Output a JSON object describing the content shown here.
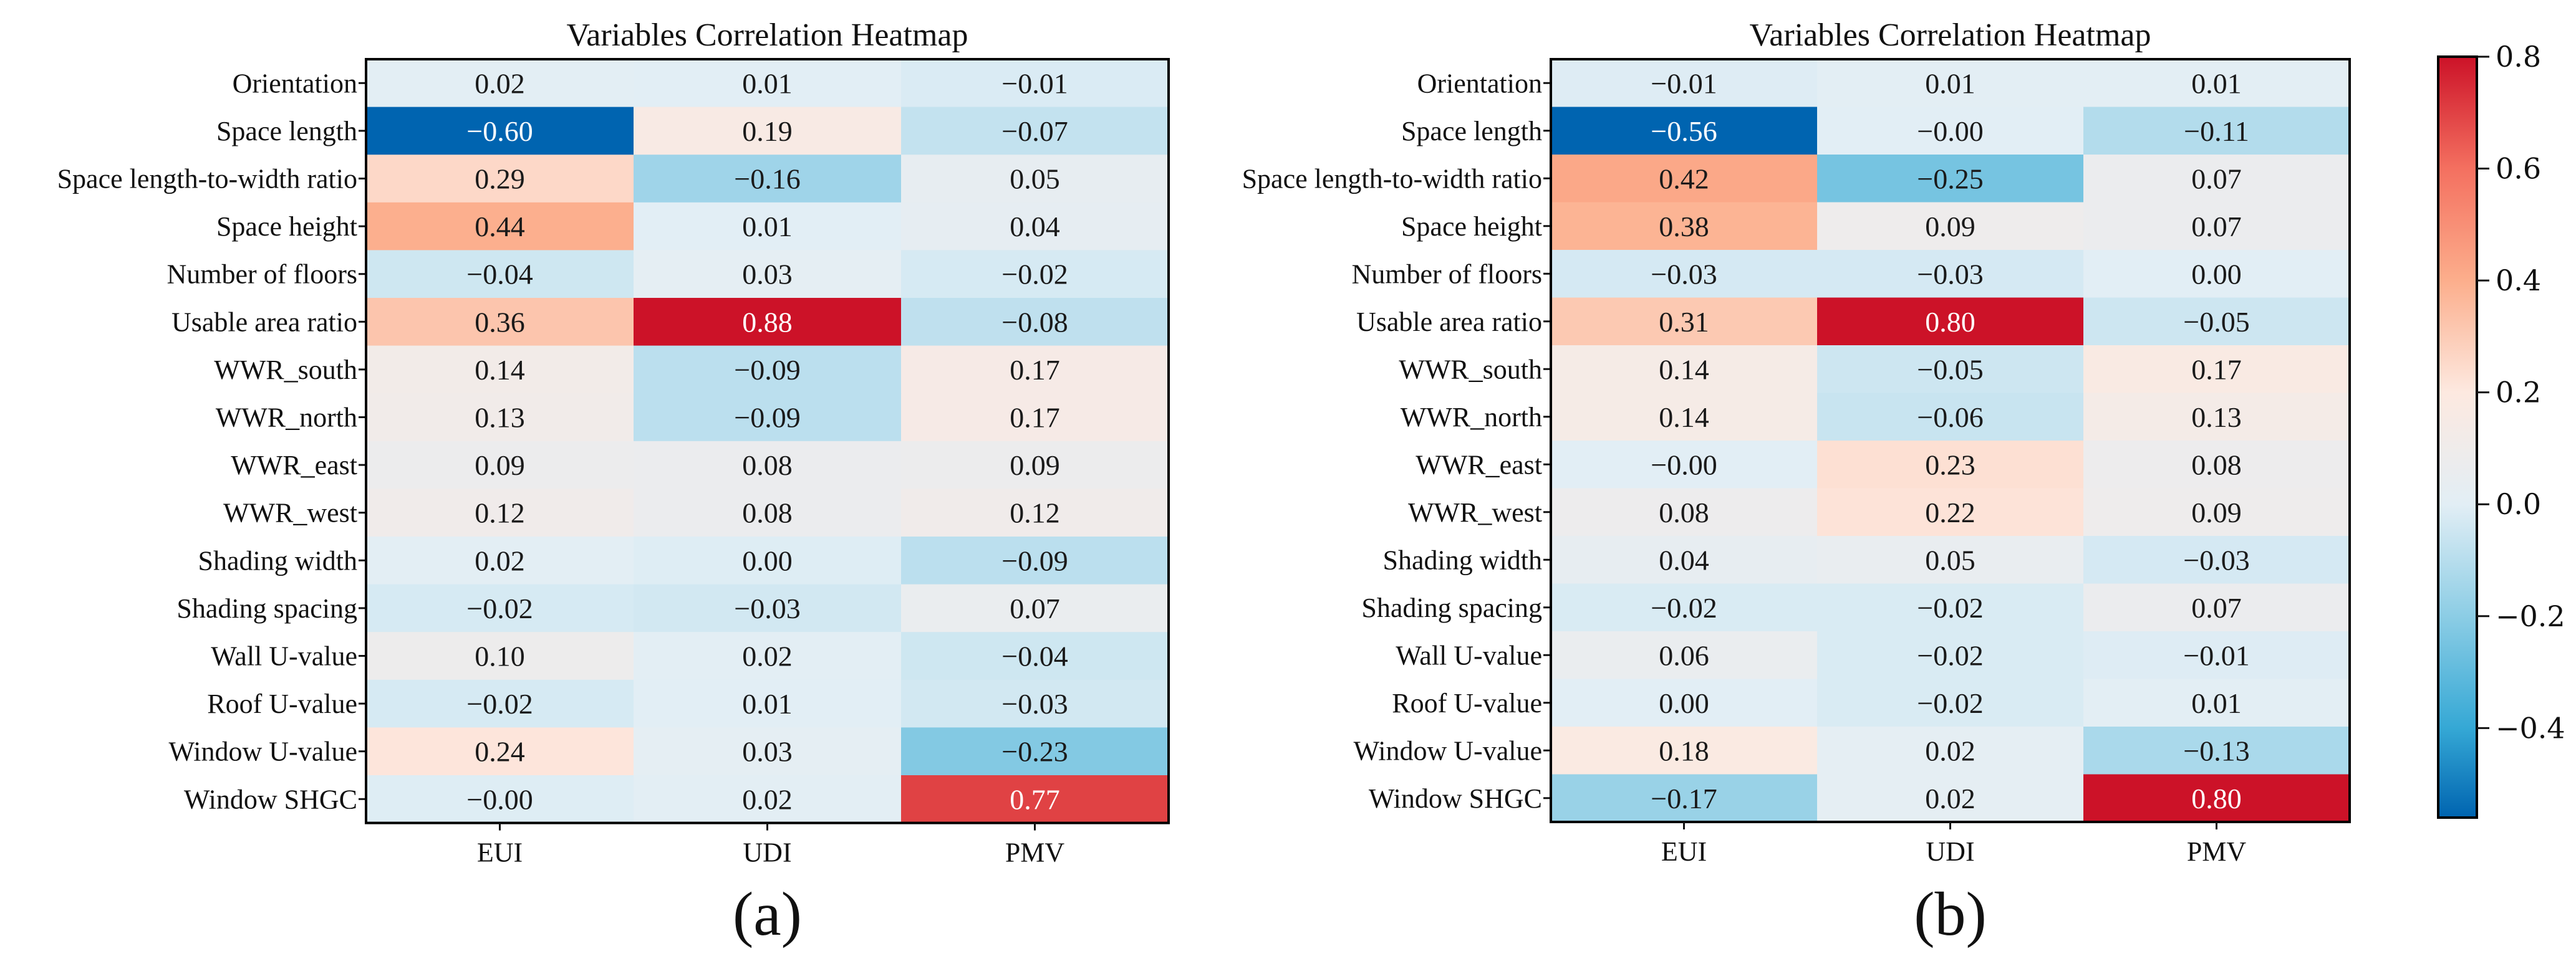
{
  "chart_data": [
    {
      "type": "heatmap",
      "panel_label": "(a)",
      "title": "Variables Correlation Heatmap",
      "rows": [
        "Orientation",
        "Space length",
        "Space length-to-width ratio",
        "Space height",
        "Number of floors",
        "Usable area ratio",
        "WWR_south",
        "WWR_north",
        "WWR_east",
        "WWR_west",
        "Shading width",
        "Shading spacing",
        "Wall U-value",
        "Roof U-value",
        "Window U-value",
        "Window SHGC"
      ],
      "columns": [
        "EUI",
        "UDI",
        "PMV"
      ],
      "values": [
        [
          0.02,
          0.01,
          -0.01
        ],
        [
          -0.6,
          0.19,
          -0.07
        ],
        [
          0.29,
          -0.16,
          0.05
        ],
        [
          0.44,
          0.01,
          0.04
        ],
        [
          -0.04,
          0.03,
          -0.02
        ],
        [
          0.36,
          0.88,
          -0.08
        ],
        [
          0.14,
          -0.09,
          0.17
        ],
        [
          0.13,
          -0.09,
          0.17
        ],
        [
          0.09,
          0.08,
          0.09
        ],
        [
          0.12,
          0.08,
          0.12
        ],
        [
          0.02,
          0.0,
          -0.09
        ],
        [
          -0.02,
          -0.03,
          0.07
        ],
        [
          0.1,
          0.02,
          -0.04
        ],
        [
          -0.02,
          0.01,
          -0.03
        ],
        [
          0.24,
          0.03,
          -0.23
        ],
        [
          -0.0,
          0.02,
          0.77
        ]
      ],
      "color_range": [
        -0.6,
        0.88
      ]
    },
    {
      "type": "heatmap",
      "panel_label": "(b)",
      "title": "Variables Correlation Heatmap",
      "rows": [
        "Orientation",
        "Space length",
        "Space length-to-width ratio",
        "Space height",
        "Number of floors",
        "Usable area ratio",
        "WWR_south",
        "WWR_north",
        "WWR_east",
        "WWR_west",
        "Shading width",
        "Shading spacing",
        "Wall U-value",
        "Roof U-value",
        "Window U-value",
        "Window SHGC"
      ],
      "columns": [
        "EUI",
        "UDI",
        "PMV"
      ],
      "values": [
        [
          -0.01,
          0.01,
          0.01
        ],
        [
          -0.56,
          -0.0,
          -0.11
        ],
        [
          0.42,
          -0.25,
          0.07
        ],
        [
          0.38,
          0.09,
          0.07
        ],
        [
          -0.03,
          -0.03,
          0.0
        ],
        [
          0.31,
          0.8,
          -0.05
        ],
        [
          0.14,
          -0.05,
          0.17
        ],
        [
          0.14,
          -0.06,
          0.13
        ],
        [
          -0.0,
          0.23,
          0.08
        ],
        [
          0.08,
          0.22,
          0.09
        ],
        [
          0.04,
          0.05,
          -0.03
        ],
        [
          -0.02,
          -0.02,
          0.07
        ],
        [
          0.06,
          -0.02,
          -0.01
        ],
        [
          0.0,
          -0.02,
          0.01
        ],
        [
          0.18,
          0.02,
          -0.13
        ],
        [
          -0.17,
          0.02,
          0.8
        ]
      ],
      "color_range": [
        -0.56,
        0.8
      ]
    }
  ],
  "colorbar": {
    "range": [
      -0.56,
      0.8
    ],
    "ticks": [
      0.8,
      0.6,
      0.4,
      0.2,
      0.0,
      -0.2,
      -0.4
    ],
    "colormap": "RdBu_r",
    "color_stops": [
      {
        "v": -0.56,
        "c": "#0064b0"
      },
      {
        "v": -0.4,
        "c": "#35a8d5"
      },
      {
        "v": -0.2,
        "c": "#8ccde5"
      },
      {
        "v": 0.0,
        "c": "#e2eef5"
      },
      {
        "v": 0.2,
        "c": "#fde9e0"
      },
      {
        "v": 0.4,
        "c": "#fcae8c"
      },
      {
        "v": 0.6,
        "c": "#f47060"
      },
      {
        "v": 0.8,
        "c": "#cc1228"
      }
    ]
  }
}
